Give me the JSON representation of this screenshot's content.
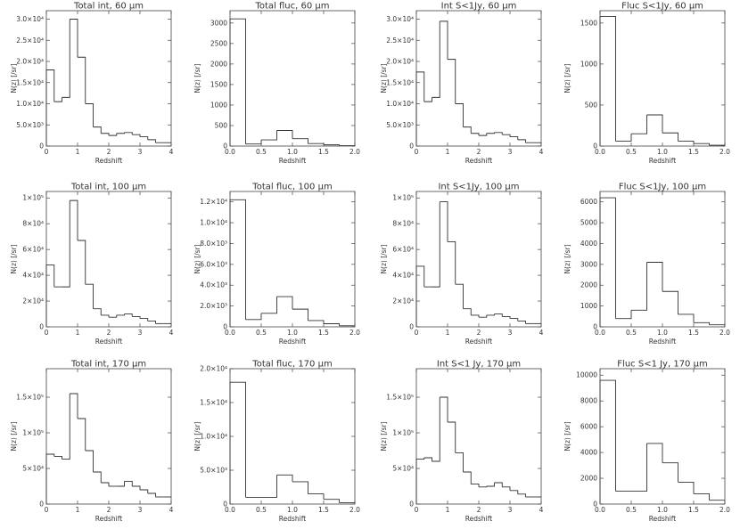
{
  "chart_data": [
    {
      "type": "bar",
      "title": "Total int, 60 μm",
      "xlabel": "Redshift",
      "ylabel": "N(z) [/sr]",
      "xlim": [
        0,
        4
      ],
      "ylim": [
        0,
        32000
      ],
      "bin_width": 0.25,
      "values": [
        18000,
        10500,
        11500,
        30000,
        21000,
        10000,
        4500,
        3000,
        2500,
        3000,
        3200,
        2700,
        2200,
        1500,
        800,
        800
      ],
      "xticks": [
        0,
        1,
        2,
        3,
        4
      ],
      "xtick_labels": [
        "0",
        "1",
        "2",
        "3",
        "4"
      ],
      "yticks": [
        0,
        5000,
        10000,
        15000,
        20000,
        25000,
        30000
      ],
      "ytick_labels": [
        "0",
        "5.0×10³",
        "1.0×10⁴",
        "1.5×10⁴",
        "2.0×10⁴",
        "2.5×10⁴",
        "3.0×10⁴"
      ]
    },
    {
      "type": "bar",
      "title": "Total fluc, 60 μm",
      "xlabel": "Redshift",
      "ylabel": "N(z) [/sr]",
      "xlim": [
        0,
        2
      ],
      "ylim": [
        0,
        3300
      ],
      "bin_width": 0.25,
      "values": [
        3100,
        50,
        150,
        380,
        180,
        60,
        30,
        10
      ],
      "xticks": [
        0,
        0.5,
        1,
        1.5,
        2
      ],
      "xtick_labels": [
        "0.0",
        "0.5",
        "1.0",
        "1.5",
        "2.0"
      ],
      "yticks": [
        0,
        500,
        1000,
        1500,
        2000,
        2500,
        3000
      ],
      "ytick_labels": [
        "0",
        "500",
        "1000",
        "1500",
        "2000",
        "2500",
        "3000"
      ]
    },
    {
      "type": "bar",
      "title": "Int S<1Jy, 60 μm",
      "xlabel": "Redshift",
      "ylabel": "N(z) [/sr]",
      "xlim": [
        0,
        4
      ],
      "ylim": [
        0,
        32000
      ],
      "bin_width": 0.25,
      "values": [
        17500,
        10500,
        11500,
        29500,
        20500,
        10000,
        4500,
        3000,
        2500,
        3000,
        3200,
        2700,
        2200,
        1500,
        800,
        800
      ],
      "xticks": [
        0,
        1,
        2,
        3,
        4
      ],
      "xtick_labels": [
        "0",
        "1",
        "2",
        "3",
        "4"
      ],
      "yticks": [
        0,
        5000,
        10000,
        15000,
        20000,
        25000,
        30000
      ],
      "ytick_labels": [
        "0",
        "5.0×10³",
        "1.0×10⁴",
        "1.5×10⁴",
        "2.0×10⁴",
        "2.5×10⁴",
        "3.0×10⁴"
      ]
    },
    {
      "type": "bar",
      "title": "Fluc S<1Jy, 60 μm",
      "xlabel": "Redshift",
      "ylabel": "N(z) [/sr]",
      "xlim": [
        0,
        2
      ],
      "ylim": [
        0,
        1650
      ],
      "bin_width": 0.25,
      "values": [
        1580,
        60,
        150,
        380,
        160,
        60,
        30,
        10
      ],
      "xticks": [
        0,
        0.5,
        1,
        1.5,
        2
      ],
      "xtick_labels": [
        "0.0",
        "0.5",
        "1.0",
        "1.5",
        "2.0"
      ],
      "yticks": [
        0,
        500,
        1000,
        1500
      ],
      "ytick_labels": [
        "0",
        "500",
        "1000",
        "1500"
      ]
    },
    {
      "type": "bar",
      "title": "Total int, 100 μm",
      "xlabel": "Redshift",
      "ylabel": "N(z) [/sr]",
      "xlim": [
        0,
        4
      ],
      "ylim": [
        0,
        105000
      ],
      "bin_width": 0.25,
      "values": [
        48000,
        31000,
        31000,
        98000,
        67000,
        33000,
        14000,
        9000,
        7500,
        9000,
        10000,
        8000,
        6500,
        4500,
        2500,
        2500
      ],
      "xticks": [
        0,
        1,
        2,
        3,
        4
      ],
      "xtick_labels": [
        "0",
        "1",
        "2",
        "3",
        "4"
      ],
      "yticks": [
        0,
        20000,
        40000,
        60000,
        80000,
        100000
      ],
      "ytick_labels": [
        "0",
        "2×10⁴",
        "4×10⁴",
        "6×10⁴",
        "8×10⁴",
        "1×10⁵"
      ]
    },
    {
      "type": "bar",
      "title": "Total fluc, 100 μm",
      "xlabel": "Redshift",
      "ylabel": "N(z) [/sr]",
      "xlim": [
        0,
        2
      ],
      "ylim": [
        0,
        13000
      ],
      "bin_width": 0.25,
      "values": [
        12200,
        700,
        1300,
        2900,
        1700,
        600,
        300,
        100
      ],
      "xticks": [
        0,
        0.5,
        1,
        1.5,
        2
      ],
      "xtick_labels": [
        "0.0",
        "0.5",
        "1.0",
        "1.5",
        "2.0"
      ],
      "yticks": [
        0,
        2000,
        4000,
        6000,
        8000,
        10000,
        12000
      ],
      "ytick_labels": [
        "0",
        "2.0×10³",
        "4.0×10³",
        "6.0×10³",
        "8.0×10³",
        "1.0×10⁴",
        "1.2×10⁴"
      ]
    },
    {
      "type": "bar",
      "title": "Int S<1Jy, 100 μm",
      "xlabel": "Redshift",
      "ylabel": "N(z) [/sr]",
      "xlim": [
        0,
        4
      ],
      "ylim": [
        0,
        105000
      ],
      "bin_width": 0.25,
      "values": [
        47000,
        31000,
        31000,
        97000,
        66000,
        33000,
        14000,
        9000,
        7500,
        9000,
        10000,
        8000,
        6500,
        4500,
        2500,
        2500
      ],
      "xticks": [
        0,
        1,
        2,
        3,
        4
      ],
      "xtick_labels": [
        "0",
        "1",
        "2",
        "3",
        "4"
      ],
      "yticks": [
        0,
        20000,
        40000,
        60000,
        80000,
        100000
      ],
      "ytick_labels": [
        "0",
        "2×10⁴",
        "4×10⁴",
        "6×10⁴",
        "8×10⁴",
        "1×10⁵"
      ]
    },
    {
      "type": "bar",
      "title": "Fluc S<1Jy, 100 μm",
      "xlabel": "Redshift",
      "ylabel": "N(z) [/sr]",
      "xlim": [
        0,
        2
      ],
      "ylim": [
        0,
        6500
      ],
      "bin_width": 0.25,
      "values": [
        6200,
        400,
        800,
        3100,
        1700,
        600,
        200,
        100
      ],
      "xticks": [
        0,
        0.5,
        1,
        1.5,
        2
      ],
      "xtick_labels": [
        "0.0",
        "0.5",
        "1.0",
        "1.5",
        "2.0"
      ],
      "yticks": [
        0,
        1000,
        2000,
        3000,
        4000,
        5000,
        6000
      ],
      "ytick_labels": [
        "0",
        "1000",
        "2000",
        "3000",
        "4000",
        "5000",
        "6000"
      ]
    },
    {
      "type": "bar",
      "title": "Total int, 170 μm",
      "xlabel": "Redshift",
      "ylabel": "N(z) [/sr]",
      "xlim": [
        0,
        4
      ],
      "ylim": [
        0,
        190000
      ],
      "bin_width": 0.25,
      "values": [
        70000,
        67000,
        63000,
        155000,
        120000,
        75000,
        45000,
        30000,
        25000,
        25000,
        32000,
        25000,
        20000,
        15000,
        10000,
        10000
      ],
      "xticks": [
        0,
        1,
        2,
        3,
        4
      ],
      "xtick_labels": [
        "0",
        "1",
        "2",
        "3",
        "4"
      ],
      "yticks": [
        0,
        50000,
        100000,
        150000
      ],
      "ytick_labels": [
        "0",
        "5×10⁴",
        "1×10⁵",
        "1.5×10⁵"
      ]
    },
    {
      "type": "bar",
      "title": "Total fluc, 170 μm",
      "xlabel": "Redshift",
      "ylabel": "N(z) [/sr]",
      "xlim": [
        0,
        2
      ],
      "ylim": [
        0,
        20000
      ],
      "bin_width": 0.25,
      "values": [
        18000,
        1000,
        1000,
        4300,
        3300,
        1500,
        700,
        200
      ],
      "xticks": [
        0,
        0.5,
        1,
        1.5,
        2
      ],
      "xtick_labels": [
        "0.0",
        "0.5",
        "1.0",
        "1.5",
        "2.0"
      ],
      "yticks": [
        0,
        5000,
        10000,
        15000,
        20000
      ],
      "ytick_labels": [
        "0",
        "5.0×10³",
        "1.0×10⁴",
        "1.5×10⁴",
        "2.0×10⁴"
      ]
    },
    {
      "type": "bar",
      "title": "Int S<1 Jy, 170 μm",
      "xlabel": "Redshift",
      "ylabel": "N(z) [/sr]",
      "xlim": [
        0,
        4
      ],
      "ylim": [
        0,
        190000
      ],
      "bin_width": 0.25,
      "values": [
        63000,
        65000,
        60000,
        150000,
        115000,
        72000,
        45000,
        28000,
        24000,
        25000,
        30000,
        24000,
        19000,
        14000,
        10000,
        10000
      ],
      "xticks": [
        0,
        1,
        2,
        3,
        4
      ],
      "xtick_labels": [
        "0",
        "1",
        "2",
        "3",
        "4"
      ],
      "yticks": [
        0,
        50000,
        100000,
        150000
      ],
      "ytick_labels": [
        "0",
        "5×10⁴",
        "1×10⁵",
        "1.5×10⁵"
      ]
    },
    {
      "type": "bar",
      "title": "Fluc S<1 Jy, 170 μm",
      "xlabel": "Redshift",
      "ylabel": "N(z) [/sr]",
      "xlim": [
        0,
        2
      ],
      "ylim": [
        0,
        10500
      ],
      "bin_width": 0.25,
      "values": [
        9600,
        1000,
        1000,
        4700,
        3200,
        1700,
        800,
        300
      ],
      "xticks": [
        0,
        0.5,
        1,
        1.5,
        2
      ],
      "xtick_labels": [
        "0.0",
        "0.5",
        "1.0",
        "1.5",
        "2.0"
      ],
      "yticks": [
        0,
        2000,
        4000,
        6000,
        8000,
        10000
      ],
      "ytick_labels": [
        "0",
        "2000",
        "4000",
        "6000",
        "8000",
        "10000"
      ]
    }
  ]
}
